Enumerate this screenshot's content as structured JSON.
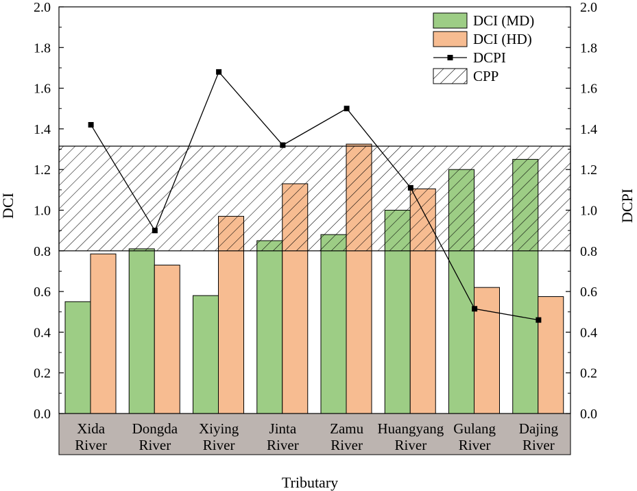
{
  "chart_data": {
    "type": "bar",
    "categories": [
      [
        "Xida",
        "River"
      ],
      [
        "Dongda",
        "River"
      ],
      [
        "Xiying",
        "River"
      ],
      [
        "Jinta",
        "River"
      ],
      [
        "Zamu",
        "River"
      ],
      [
        "Huangyang",
        "River"
      ],
      [
        "Gulang",
        "River"
      ],
      [
        "Dajing",
        "River"
      ]
    ],
    "series": [
      {
        "name": "DCI (MD)",
        "kind": "bar",
        "axis": "left",
        "color": "#9dcd85",
        "values": [
          0.55,
          0.81,
          0.58,
          0.85,
          0.88,
          1.0,
          1.2,
          1.25
        ]
      },
      {
        "name": "DCI (HD)",
        "kind": "bar",
        "axis": "left",
        "color": "#f7bc91",
        "values": [
          0.785,
          0.73,
          0.97,
          1.13,
          1.325,
          1.105,
          0.62,
          0.575
        ]
      },
      {
        "name": "DCPI",
        "kind": "line",
        "axis": "right",
        "color": "#000000",
        "values": [
          1.42,
          0.9,
          1.68,
          1.32,
          1.5,
          1.11,
          0.515,
          0.46
        ]
      }
    ],
    "band": {
      "name": "CPP",
      "pattern": "diagonal-hatch",
      "range": [
        0.8,
        1.315
      ]
    },
    "xlabel": "Tributary",
    "ylabel": "DCI",
    "y2label": "DCPI",
    "ylim": [
      0,
      2.0
    ],
    "y2lim": [
      0,
      2.0
    ],
    "yticks": [
      "0.0",
      "0.2",
      "0.4",
      "0.6",
      "0.8",
      "1.0",
      "1.2",
      "1.4",
      "1.6",
      "1.8",
      "2.0"
    ],
    "category_band_color": "#bcb4b0",
    "grid": false,
    "legend": {
      "position": "top-right"
    }
  }
}
